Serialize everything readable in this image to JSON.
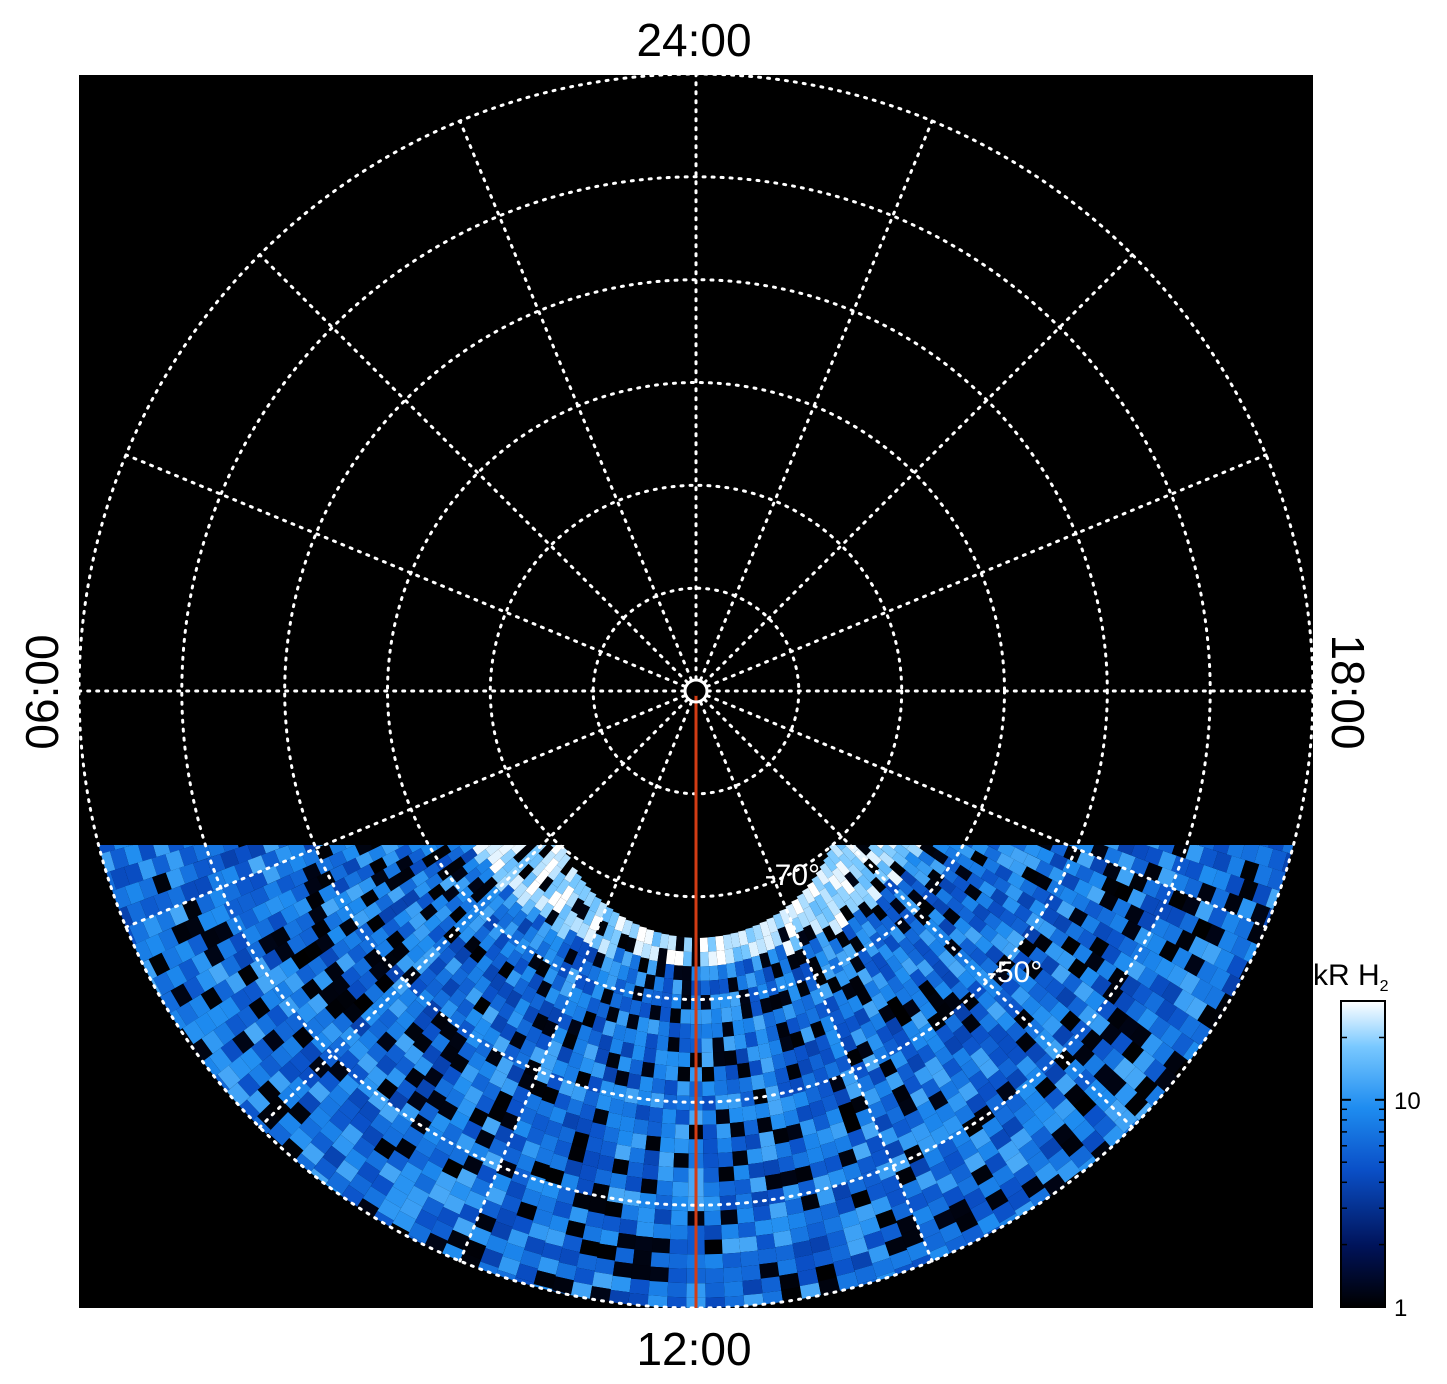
{
  "chart_data": {
    "type": "heatmap",
    "projection": "polar",
    "title": "",
    "local_time_labels": {
      "top": "24:00",
      "bottom": "12:00",
      "left": "06:00",
      "right": "18:00"
    },
    "latitude_labels": [
      {
        "text": "-70°",
        "lat": -70,
        "lt_hours": 13.3
      },
      {
        "text": "-50°",
        "lat": -50,
        "lt_hours": 15.0
      }
    ],
    "grid": {
      "latitude_circles_deg": [
        -90,
        -80,
        -70,
        -60,
        -50,
        -40
      ],
      "longitude_step_hours": 1.5,
      "style": "dotted white",
      "on": true
    },
    "meridian_line": {
      "lt_hours": 12,
      "color": "#d23c14"
    },
    "visible_region": {
      "lt_hours_range": [
        3.3,
        20.7
      ],
      "colat_max_deg": 58
    },
    "auroral_oval": {
      "description_band_colat_deg": [
        18,
        26
      ],
      "peak_intensity_kR": 30,
      "lt_hours_range": [
        8,
        16
      ]
    },
    "colorbar": {
      "title": "kR H",
      "title_subscript": "2",
      "scale": "log",
      "range": [
        1,
        30
      ],
      "ticks": [
        {
          "value": 1,
          "label": "1"
        },
        {
          "value": 10,
          "label": "10"
        }
      ],
      "colors": [
        "#000000",
        "#00135a",
        "#0a50c8",
        "#1e8cf0",
        "#78c8ff",
        "#ffffff"
      ]
    },
    "background_color": "#000000"
  }
}
